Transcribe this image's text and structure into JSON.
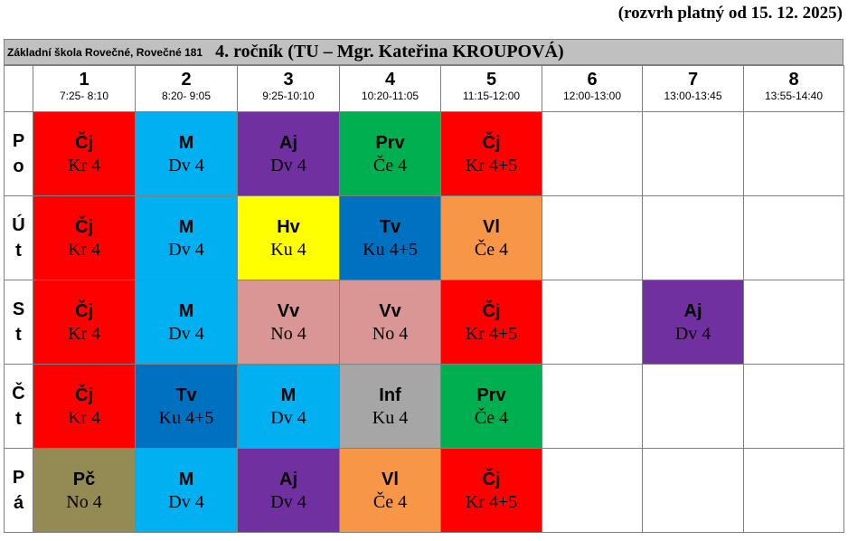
{
  "validity": "(rozvrh platný od 15. 12. 2025)",
  "school": "Základní škola Rovečné, Rovečné 181",
  "class_title": "4. ročník  (TU – Mgr. Kateřina KROUPOVÁ)",
  "periods": [
    {
      "num": "1",
      "time": "7:25- 8:10"
    },
    {
      "num": "2",
      "time": "8:20- 9:05"
    },
    {
      "num": "3",
      "time": "9:25-10:10"
    },
    {
      "num": "4",
      "time": "10:20-11:05"
    },
    {
      "num": "5",
      "time": "11:15-12:00"
    },
    {
      "num": "6",
      "time": "12:00-13:00"
    },
    {
      "num": "7",
      "time": "13:00-13:45"
    },
    {
      "num": "8",
      "time": "13:55-14:40"
    }
  ],
  "colors": {
    "cj": "#ff0000",
    "m": "#00b0f0",
    "aj": "#7030a0",
    "prv": "#00b050",
    "hv": "#ffff00",
    "tv": "#0070c0",
    "vl": "#f79646",
    "vv": "#d99694",
    "inf": "#a6a6a6",
    "pc": "#948a54",
    "empty": "#ffffff"
  },
  "days": [
    {
      "line1": "P",
      "line2": "o",
      "slots": [
        {
          "subject": "Čj",
          "room": "Kr 4",
          "color": "#ff0000"
        },
        {
          "subject": "M",
          "room": "Dv 4",
          "color": "#00b0f0"
        },
        {
          "subject": "Aj",
          "room": "Dv 4",
          "color": "#7030a0"
        },
        {
          "subject": "Prv",
          "room": "Če 4",
          "color": "#00b050"
        },
        {
          "subject": "Čj",
          "room": "Kr 4+5",
          "color": "#ff0000"
        },
        {
          "subject": "",
          "room": "",
          "color": "#ffffff"
        },
        {
          "subject": "",
          "room": "",
          "color": "#ffffff"
        },
        {
          "subject": "",
          "room": "",
          "color": "#ffffff"
        }
      ]
    },
    {
      "line1": "Ú",
      "line2": "t",
      "slots": [
        {
          "subject": "Čj",
          "room": "Kr 4",
          "color": "#ff0000"
        },
        {
          "subject": "M",
          "room": "Dv 4",
          "color": "#00b0f0"
        },
        {
          "subject": "Hv",
          "room": "Ku 4",
          "color": "#ffff00"
        },
        {
          "subject": "Tv",
          "room": "Ku 4+5",
          "color": "#0070c0"
        },
        {
          "subject": "Vl",
          "room": "Če 4",
          "color": "#f79646"
        },
        {
          "subject": "",
          "room": "",
          "color": "#ffffff"
        },
        {
          "subject": "",
          "room": "",
          "color": "#ffffff"
        },
        {
          "subject": "",
          "room": "",
          "color": "#ffffff"
        }
      ]
    },
    {
      "line1": "S",
      "line2": "t",
      "slots": [
        {
          "subject": "Čj",
          "room": "Kr 4",
          "color": "#ff0000"
        },
        {
          "subject": "M",
          "room": "Dv 4",
          "color": "#00b0f0"
        },
        {
          "subject": "Vv",
          "room": "No 4",
          "color": "#d99694"
        },
        {
          "subject": "Vv",
          "room": "No 4",
          "color": "#d99694"
        },
        {
          "subject": "Čj",
          "room": "Kr 4+5",
          "color": "#ff0000"
        },
        {
          "subject": "",
          "room": "",
          "color": "#ffffff"
        },
        {
          "subject": "Aj",
          "room": "Dv 4",
          "color": "#7030a0"
        },
        {
          "subject": "",
          "room": "",
          "color": "#ffffff"
        }
      ]
    },
    {
      "line1": "Č",
      "line2": "t",
      "slots": [
        {
          "subject": "Čj",
          "room": "Kr 4",
          "color": "#ff0000"
        },
        {
          "subject": "Tv",
          "room": "Ku 4+5",
          "color": "#0070c0"
        },
        {
          "subject": "M",
          "room": "Dv 4",
          "color": "#00b0f0"
        },
        {
          "subject": "Inf",
          "room": "Ku 4",
          "color": "#a6a6a6"
        },
        {
          "subject": "Prv",
          "room": "Če 4",
          "color": "#00b050"
        },
        {
          "subject": "",
          "room": "",
          "color": "#ffffff"
        },
        {
          "subject": "",
          "room": "",
          "color": "#ffffff"
        },
        {
          "subject": "",
          "room": "",
          "color": "#ffffff"
        }
      ]
    },
    {
      "line1": "P",
      "line2": "á",
      "slots": [
        {
          "subject": "Pč",
          "room": "No 4",
          "color": "#948a54"
        },
        {
          "subject": "M",
          "room": "Dv 4",
          "color": "#00b0f0"
        },
        {
          "subject": "Aj",
          "room": "Dv 4",
          "color": "#7030a0"
        },
        {
          "subject": "Vl",
          "room": "Če 4",
          "color": "#f79646"
        },
        {
          "subject": "Čj",
          "room": "Kr 4+5",
          "color": "#ff0000"
        },
        {
          "subject": "",
          "room": "",
          "color": "#ffffff"
        },
        {
          "subject": "",
          "room": "",
          "color": "#ffffff"
        },
        {
          "subject": "",
          "room": "",
          "color": "#ffffff"
        }
      ]
    }
  ]
}
